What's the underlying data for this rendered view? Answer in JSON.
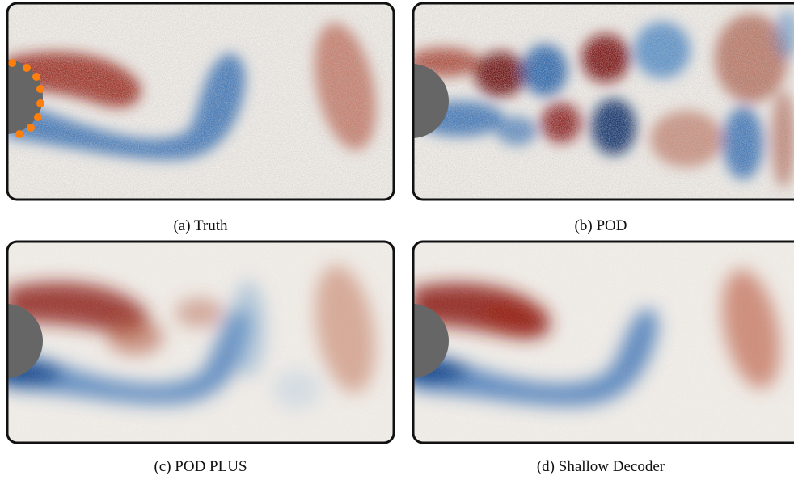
{
  "figure": {
    "panels": [
      {
        "id": "truth",
        "label": "(a)",
        "method": "Truth",
        "smallcaps": false,
        "sensors_shown": true,
        "noise": "high"
      },
      {
        "id": "pod",
        "label": "(b)",
        "method": "POD",
        "smallcaps": true,
        "sensors_shown": false,
        "noise": "high"
      },
      {
        "id": "pod-plus",
        "label": "(c)",
        "method": "POD PLUS",
        "smallcaps": true,
        "sensors_shown": false,
        "noise": "low"
      },
      {
        "id": "shallow-decoder",
        "label": "(d)",
        "method": "Shallow Decoder",
        "smallcaps": false,
        "sensors_shown": false,
        "noise": "low"
      }
    ],
    "colors": {
      "positive_vorticity": "#8e1d15",
      "negative_vorticity": "#1f5ca8",
      "background": "#f1ede8",
      "cylinder": "#666666",
      "sensor": "#ff7f0e",
      "frame": "#111111"
    }
  }
}
